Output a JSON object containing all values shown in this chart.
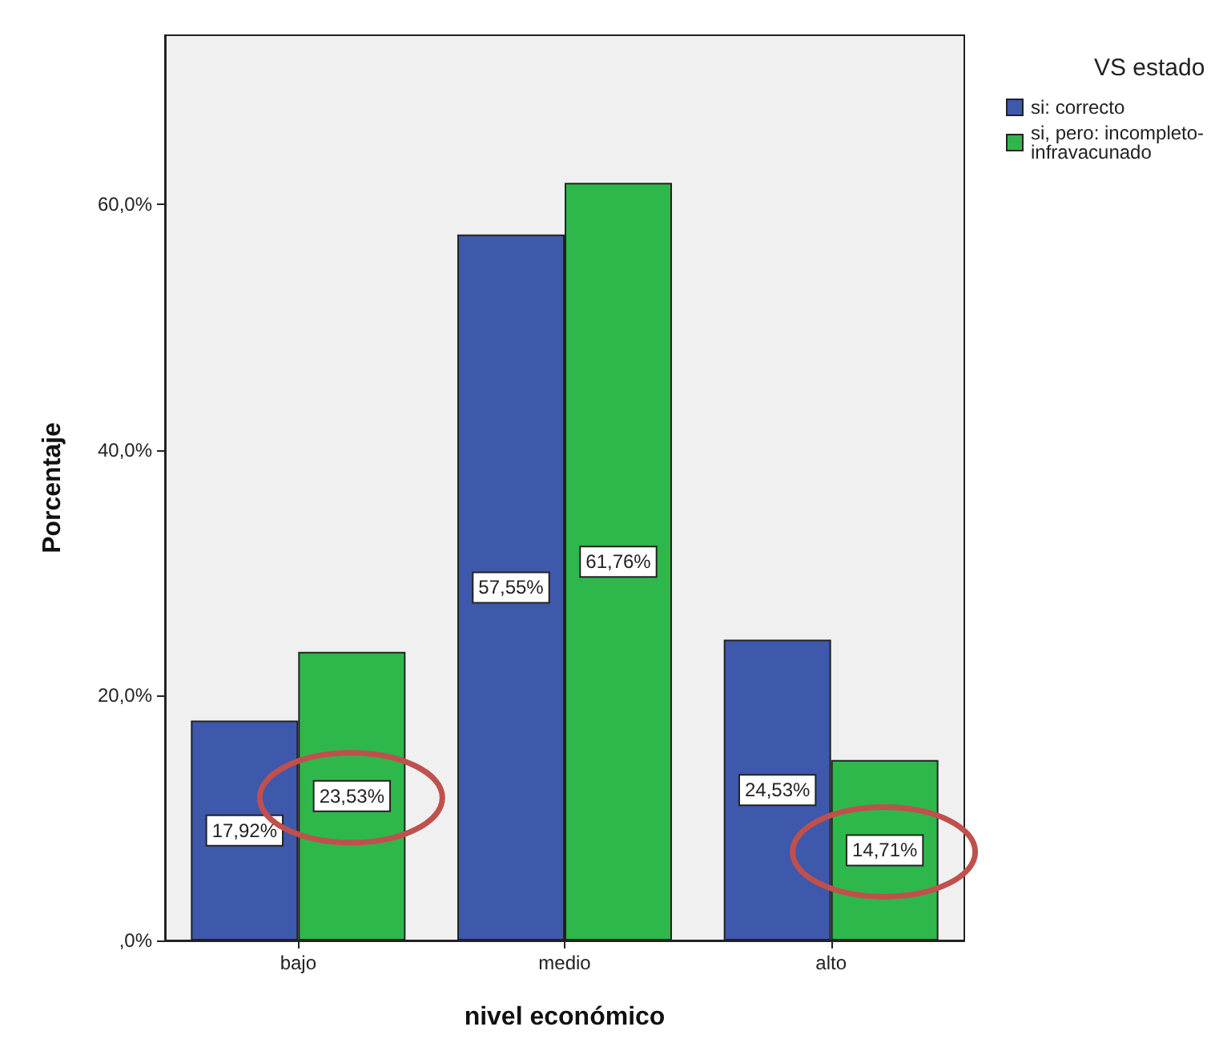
{
  "chart_data": {
    "type": "bar",
    "xlabel": "nivel económico",
    "ylabel": "Porcentaje",
    "legend_title": "VS estado",
    "categories": [
      "bajo",
      "medio",
      "alto"
    ],
    "series": [
      {
        "name": "si: correcto",
        "color": "#3e58ac",
        "values": [
          17.92,
          57.55,
          24.53
        ],
        "value_labels": [
          "17,92%",
          "57,55%",
          "24,53%"
        ]
      },
      {
        "name": "si, pero: incompleto-infravacunado",
        "color": "#2eb84b",
        "values": [
          23.53,
          61.76,
          14.71
        ],
        "value_labels": [
          "23,53%",
          "61,76%",
          "14,71%"
        ]
      }
    ],
    "ylim": [
      0,
      73.8
    ],
    "yticks": [
      {
        "value": 0,
        "label": ",0%"
      },
      {
        "value": 20,
        "label": "20,0%"
      },
      {
        "value": 40,
        "label": "40,0%"
      },
      {
        "value": 60,
        "label": "60,0%"
      }
    ],
    "grid": false,
    "legend": "top right"
  }
}
